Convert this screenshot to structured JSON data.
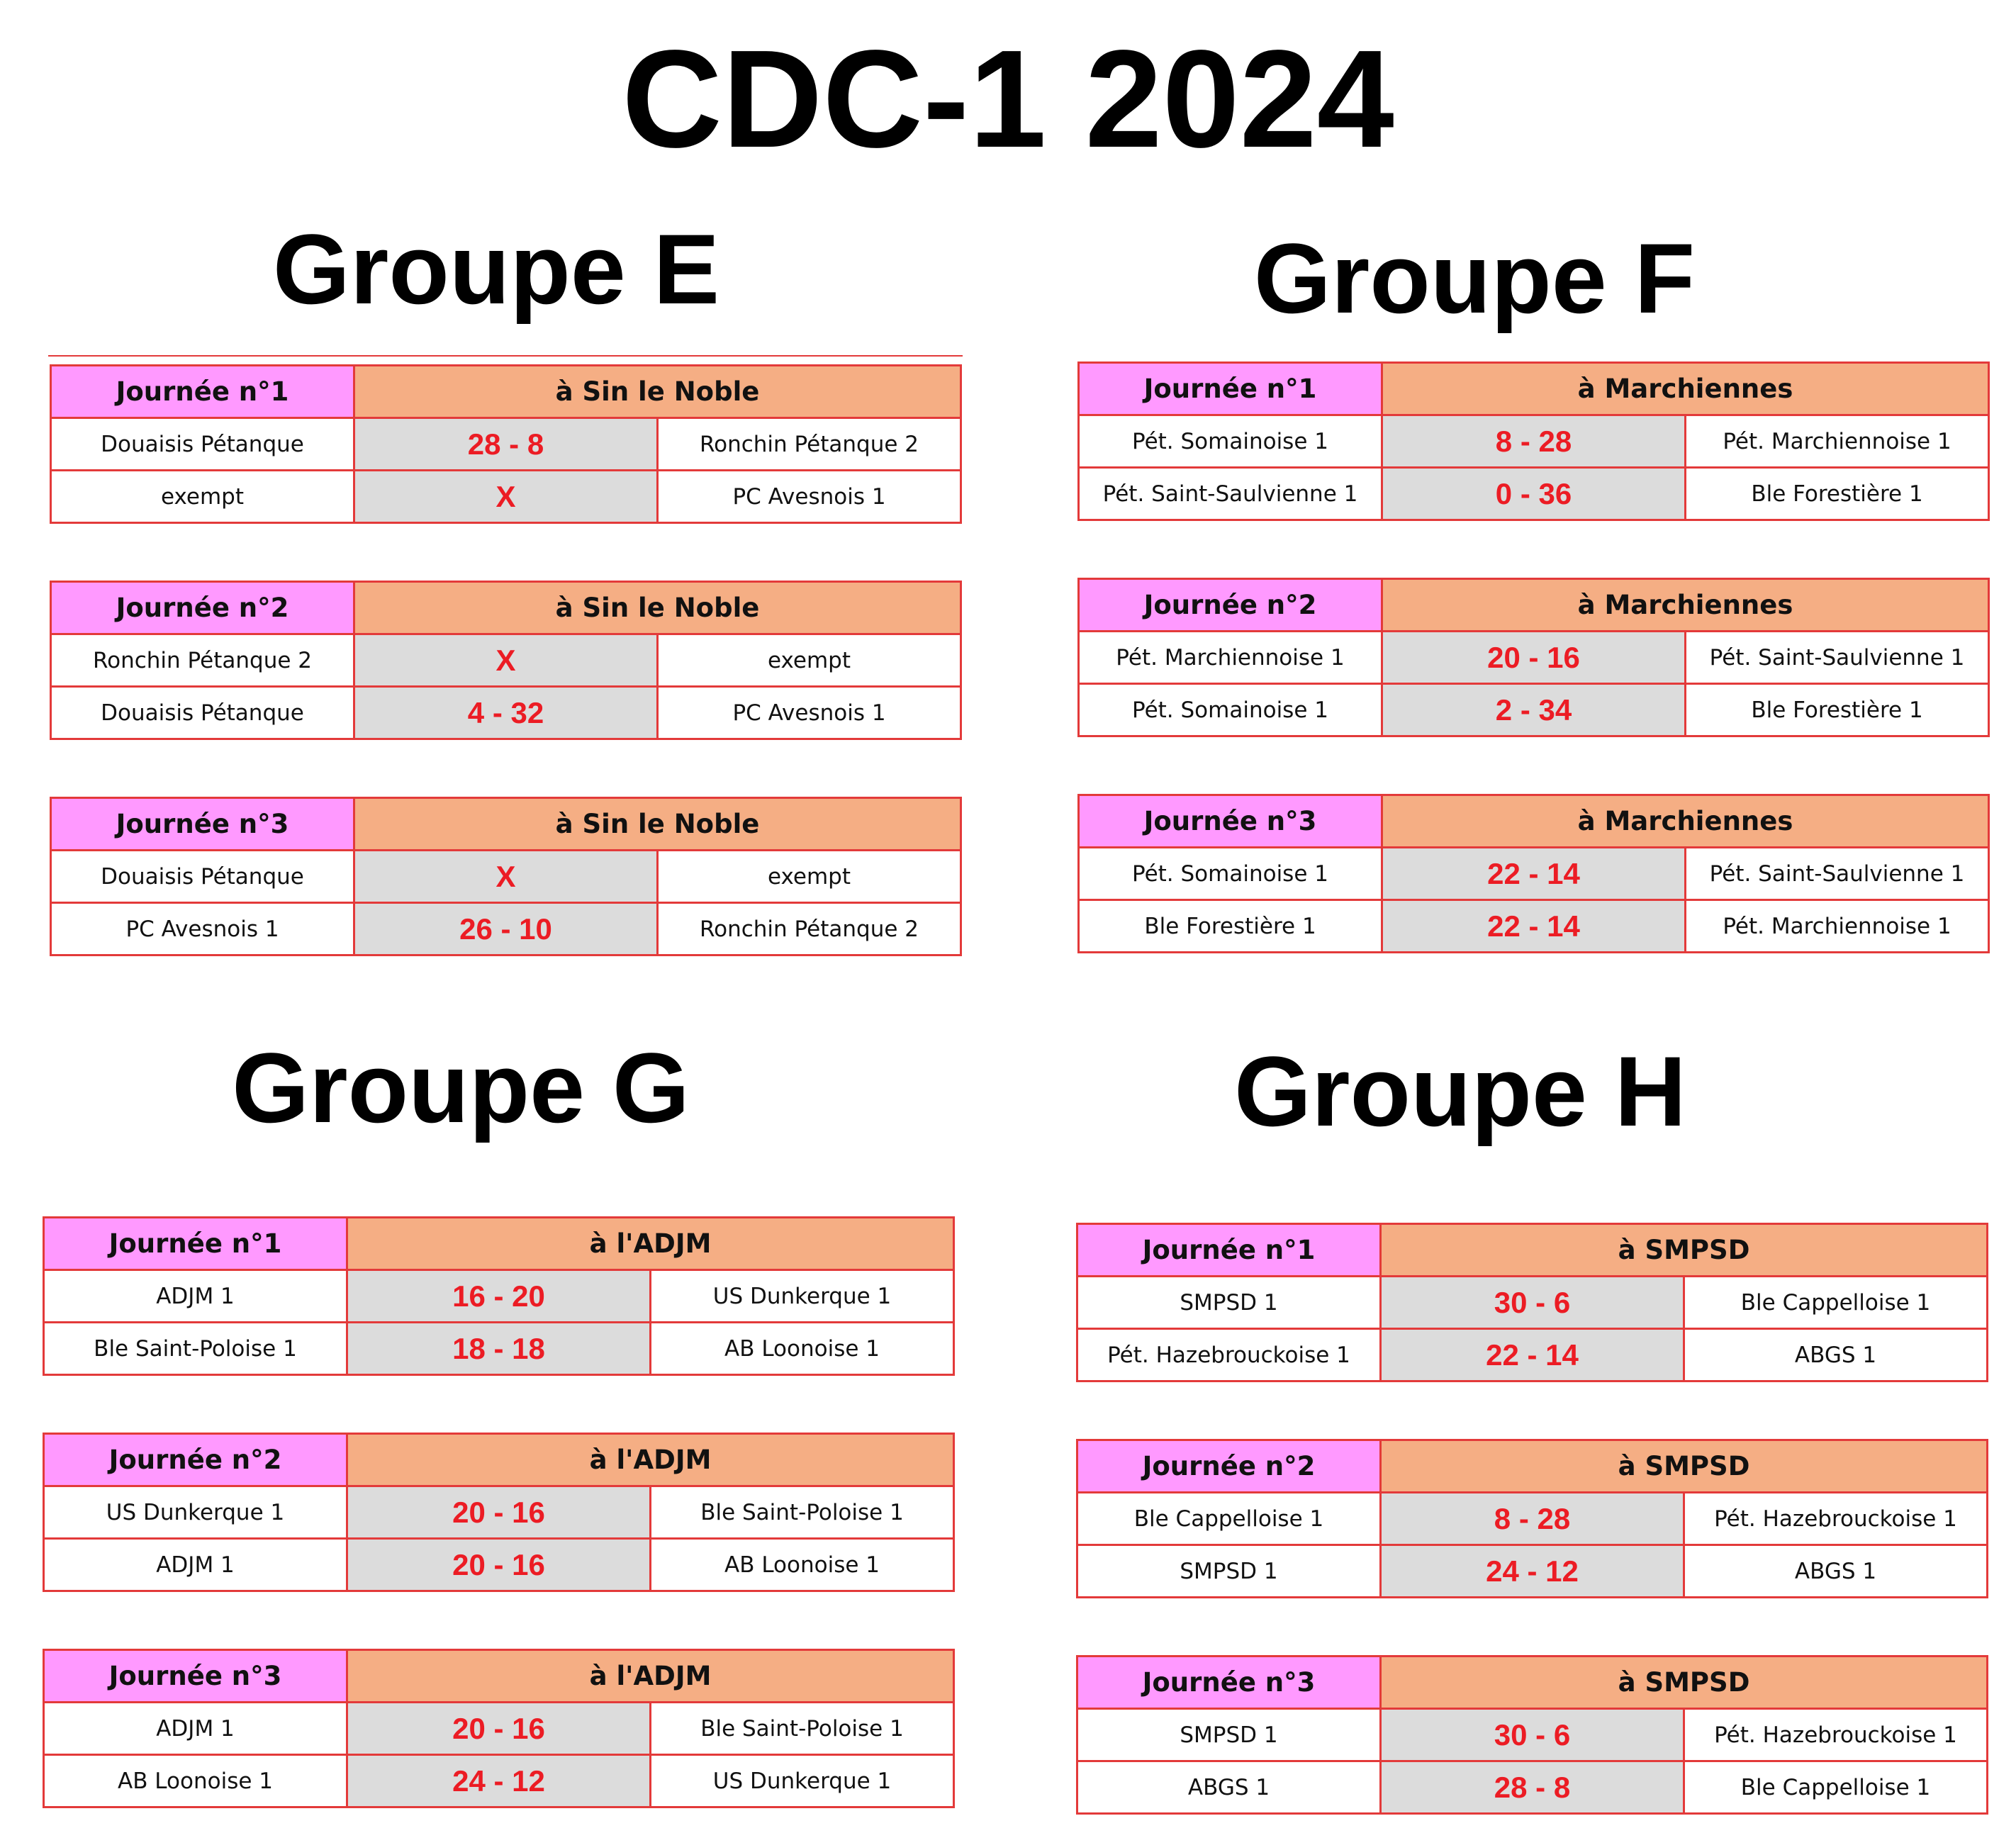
{
  "title": "CDC-1 2024",
  "groups": [
    {
      "name": "Groupe E",
      "rounds": [
        {
          "day": "Journée n°1",
          "venue": "à Sin le Noble",
          "matches": [
            {
              "home": "Douaisis Pétanque",
              "score": "28 - 8",
              "away": "Ronchin Pétanque 2"
            },
            {
              "home": "exempt",
              "score": "X",
              "away": "PC Avesnois 1"
            }
          ]
        },
        {
          "day": "Journée n°2",
          "venue": "à Sin le Noble",
          "matches": [
            {
              "home": "Ronchin Pétanque 2",
              "score": "X",
              "away": "exempt"
            },
            {
              "home": "Douaisis Pétanque",
              "score": "4 - 32",
              "away": "PC Avesnois 1"
            }
          ]
        },
        {
          "day": "Journée n°3",
          "venue": "à Sin le Noble",
          "matches": [
            {
              "home": "Douaisis Pétanque",
              "score": "X",
              "away": "exempt"
            },
            {
              "home": "PC Avesnois 1",
              "score": "26 - 10",
              "away": "Ronchin Pétanque 2"
            }
          ]
        }
      ]
    },
    {
      "name": "Groupe F",
      "rounds": [
        {
          "day": "Journée n°1",
          "venue": "à Marchiennes",
          "matches": [
            {
              "home": "Pét. Somainoise 1",
              "score": "8 - 28",
              "away": "Pét. Marchiennoise 1"
            },
            {
              "home": "Pét. Saint-Saulvienne 1",
              "score": "0 - 36",
              "away": "Ble Forestière 1"
            }
          ]
        },
        {
          "day": "Journée n°2",
          "venue": "à Marchiennes",
          "matches": [
            {
              "home": "Pét. Marchiennoise 1",
              "score": "20 - 16",
              "away": "Pét. Saint-Saulvienne 1"
            },
            {
              "home": "Pét. Somainoise 1",
              "score": "2 - 34",
              "away": "Ble Forestière 1"
            }
          ]
        },
        {
          "day": "Journée n°3",
          "venue": "à Marchiennes",
          "matches": [
            {
              "home": "Pét. Somainoise 1",
              "score": "22 - 14",
              "away": "Pét. Saint-Saulvienne 1"
            },
            {
              "home": "Ble Forestière 1",
              "score": "22 - 14",
              "away": "Pét. Marchiennoise 1"
            }
          ]
        }
      ]
    },
    {
      "name": "Groupe G",
      "rounds": [
        {
          "day": "Journée n°1",
          "venue": "à l'ADJM",
          "matches": [
            {
              "home": "ADJM 1",
              "score": "16 - 20",
              "away": "US Dunkerque 1"
            },
            {
              "home": "Ble Saint-Poloise 1",
              "score": "18 - 18",
              "away": "AB Loonoise 1"
            }
          ]
        },
        {
          "day": "Journée n°2",
          "venue": "à l'ADJM",
          "matches": [
            {
              "home": "US Dunkerque 1",
              "score": "20 - 16",
              "away": "Ble Saint-Poloise 1"
            },
            {
              "home": "ADJM 1",
              "score": "20 - 16",
              "away": "AB Loonoise 1"
            }
          ]
        },
        {
          "day": "Journée n°3",
          "venue": "à l'ADJM",
          "matches": [
            {
              "home": "ADJM 1",
              "score": "20 - 16",
              "away": "Ble Saint-Poloise 1"
            },
            {
              "home": "AB Loonoise 1",
              "score": "24 - 12",
              "away": "US Dunkerque 1"
            }
          ]
        }
      ]
    },
    {
      "name": "Groupe H",
      "rounds": [
        {
          "day": "Journée n°1",
          "venue": "à SMPSD",
          "matches": [
            {
              "home": "SMPSD 1",
              "score": "30 - 6",
              "away": "Ble Cappelloise 1"
            },
            {
              "home": "Pét. Hazebrouckoise 1",
              "score": "22 - 14",
              "away": "ABGS 1"
            }
          ]
        },
        {
          "day": "Journée n°2",
          "venue": "à SMPSD",
          "matches": [
            {
              "home": "Ble Cappelloise 1",
              "score": "8 - 28",
              "away": "Pét. Hazebrouckoise 1"
            },
            {
              "home": "SMPSD 1",
              "score": "24 - 12",
              "away": "ABGS 1"
            }
          ]
        },
        {
          "day": "Journée n°3",
          "venue": "à SMPSD",
          "matches": [
            {
              "home": "SMPSD 1",
              "score": "30 - 6",
              "away": "Pét. Hazebrouckoise 1"
            },
            {
              "home": "ABGS 1",
              "score": "28 - 8",
              "away": "Ble Cappelloise 1"
            }
          ]
        }
      ]
    }
  ]
}
